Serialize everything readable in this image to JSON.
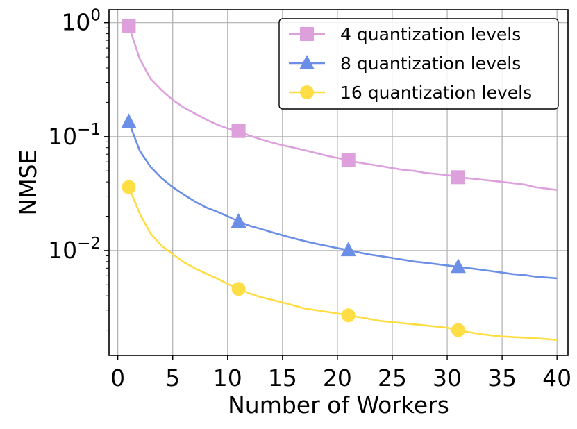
{
  "chart_data": {
    "type": "line",
    "xlabel": "Number of Workers",
    "ylabel": "NMSE",
    "xlim": [
      -0.8,
      41.0
    ],
    "ylim": [
      0.0012,
      1.3
    ],
    "yscale": "log",
    "grid": true,
    "legend_position": "top-right",
    "x_ticks": [
      0,
      5,
      10,
      15,
      20,
      25,
      30,
      35,
      40
    ],
    "y_ticks": [
      {
        "value": 1,
        "base": "10",
        "exp": "0"
      },
      {
        "value": 0.1,
        "base": "10",
        "exp": "−1"
      },
      {
        "value": 0.01,
        "base": "10",
        "exp": "−2"
      }
    ],
    "x": [
      1,
      2,
      3,
      4,
      5,
      6,
      7,
      8,
      9,
      10,
      11,
      12,
      13,
      14,
      15,
      16,
      17,
      18,
      19,
      20,
      21,
      22,
      23,
      24,
      25,
      26,
      27,
      28,
      29,
      30,
      31,
      32,
      33,
      34,
      35,
      36,
      37,
      38,
      39,
      40
    ],
    "marker_x": [
      1,
      11,
      21,
      31
    ],
    "series": [
      {
        "name": "4 quantization levels",
        "color": "#dda0dd",
        "marker": "square",
        "values": [
          0.94,
          0.48,
          0.32,
          0.255,
          0.21,
          0.18,
          0.16,
          0.142,
          0.128,
          0.118,
          0.112,
          0.102,
          0.095,
          0.089,
          0.084,
          0.08,
          0.076,
          0.072,
          0.068,
          0.065,
          0.062,
          0.059,
          0.057,
          0.055,
          0.053,
          0.051,
          0.05,
          0.048,
          0.047,
          0.046,
          0.044,
          0.043,
          0.042,
          0.041,
          0.04,
          0.039,
          0.038,
          0.036,
          0.035,
          0.034
        ]
      },
      {
        "name": "8 quantization levels",
        "color": "#6b8ee6",
        "marker": "triangle",
        "values": [
          0.135,
          0.075,
          0.054,
          0.043,
          0.036,
          0.031,
          0.027,
          0.024,
          0.022,
          0.02,
          0.018,
          0.0165,
          0.0155,
          0.0145,
          0.0136,
          0.0128,
          0.0121,
          0.0115,
          0.011,
          0.0105,
          0.0101,
          0.0096,
          0.0092,
          0.0089,
          0.0086,
          0.0083,
          0.008,
          0.0078,
          0.0076,
          0.0074,
          0.0072,
          0.007,
          0.0068,
          0.0066,
          0.0064,
          0.0062,
          0.0061,
          0.0059,
          0.0058,
          0.0057
        ]
      },
      {
        "name": "16 quantization levels",
        "color": "#ffdd44",
        "marker": "circle",
        "values": [
          0.036,
          0.021,
          0.014,
          0.011,
          0.0093,
          0.0079,
          0.007,
          0.0063,
          0.0057,
          0.0051,
          0.0046,
          0.0042,
          0.0039,
          0.0037,
          0.0035,
          0.0033,
          0.0031,
          0.003,
          0.0029,
          0.0028,
          0.0027,
          0.0026,
          0.0025,
          0.0024,
          0.00235,
          0.0023,
          0.00225,
          0.0022,
          0.00215,
          0.0021,
          0.002,
          0.00192,
          0.00185,
          0.0018,
          0.00176,
          0.00174,
          0.00172,
          0.0017,
          0.00167,
          0.00164
        ]
      }
    ]
  }
}
